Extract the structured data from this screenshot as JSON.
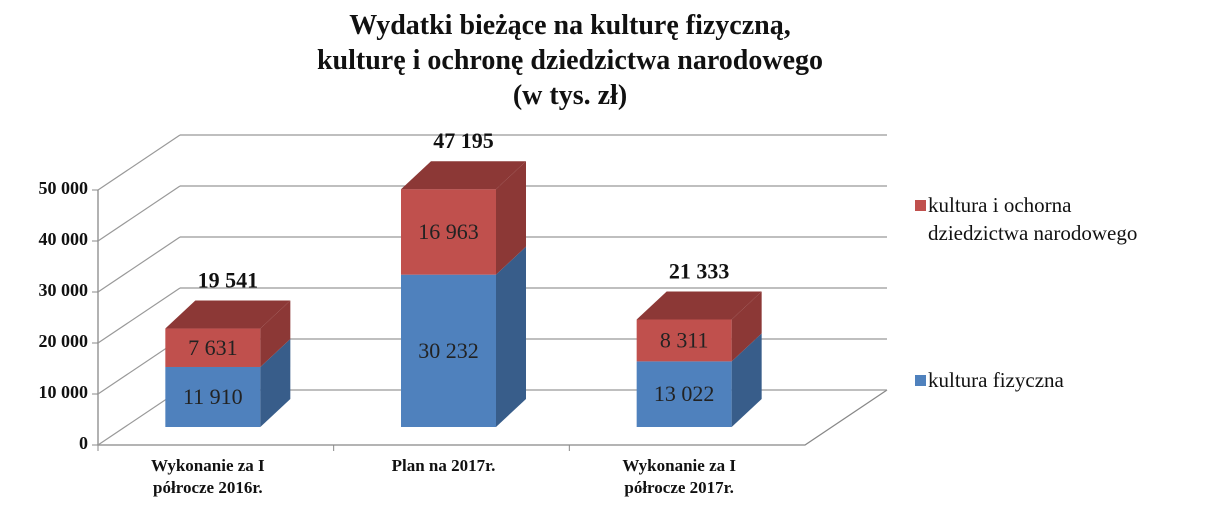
{
  "chart_data": {
    "type": "bar3d_stacked",
    "title": "Wydatki bieżące na kulturę fizyczną,\nkulturę i ochronę dziedzictwa narodowego\n(w tys. zł)",
    "categories": [
      "Wykonanie za I\npółrocze 2016r.",
      "Plan na 2017r.",
      "Wykonanie za I\npółrocze 2017r."
    ],
    "series": [
      {
        "name": "kultura fizyczna",
        "color": "#4f81bd",
        "side_color": "#385d8a",
        "values": [
          11910,
          30232,
          13022
        ],
        "value_labels": [
          "11 910",
          "30 232",
          "13 022"
        ]
      },
      {
        "name": "kultura i ochorna\ndziedzictwa narodowego",
        "color": "#c0504d",
        "side_color": "#8c3836",
        "values": [
          7631,
          16963,
          8311
        ],
        "value_labels": [
          "7 631",
          "16 963",
          "8 311"
        ]
      }
    ],
    "totals": {
      "values": [
        19541,
        47195,
        21333
      ],
      "value_labels": [
        "19 541",
        "47 195",
        "21 333"
      ]
    },
    "ylim": [
      0,
      50000
    ],
    "yticks": [
      0,
      {
        "value": 10000,
        "label": "10 000"
      },
      {
        "value": 20000,
        "label": "20 000"
      },
      {
        "value": 30000,
        "label": "30 000"
      },
      {
        "value": 40000,
        "label": "40 000"
      },
      {
        "value": 50000,
        "label": "50 000"
      }
    ],
    "grid": true,
    "legend": "right"
  }
}
